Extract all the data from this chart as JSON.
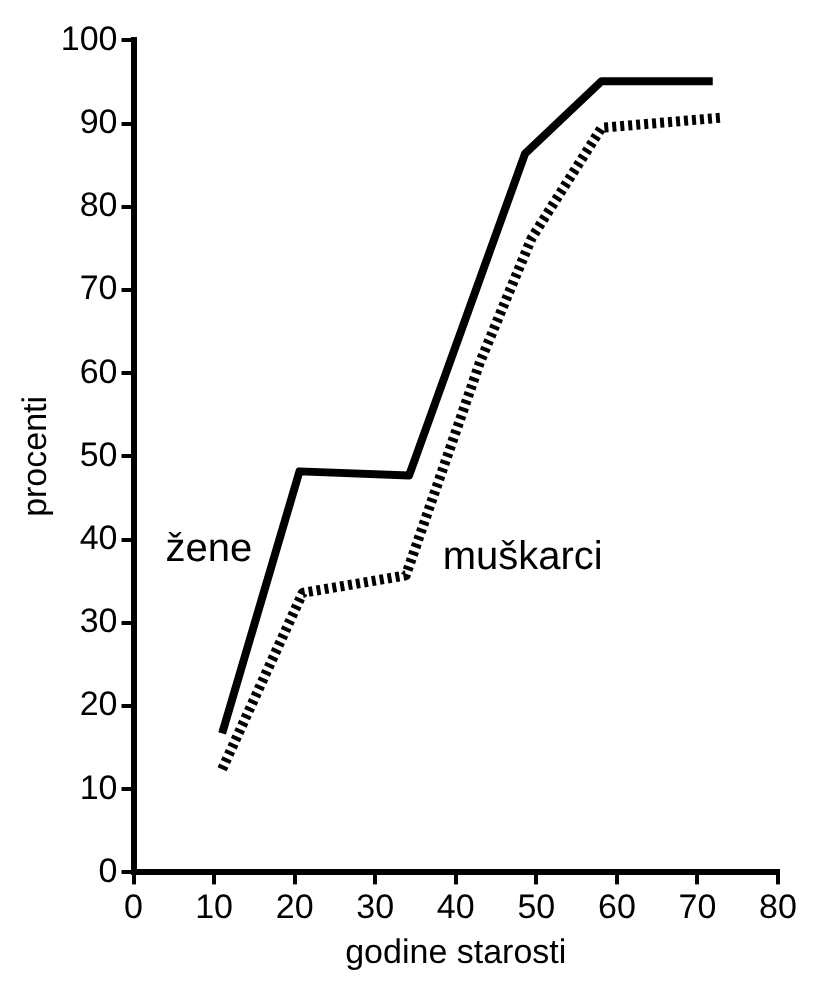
{
  "chart_data": {
    "type": "line",
    "xlabel": "godine starosti",
    "ylabel": "procenti",
    "xlim": [
      0,
      80
    ],
    "xticks": [
      0,
      10,
      20,
      30,
      40,
      50,
      60,
      70,
      80
    ],
    "ylim": [
      0,
      100
    ],
    "yticks": [
      0,
      10,
      20,
      30,
      40,
      50,
      60,
      70,
      80,
      90,
      100
    ],
    "grid": false,
    "legend": false,
    "marker": "none",
    "series": [
      {
        "name": "žene",
        "color": "#000000",
        "line_style": "solid",
        "x": [
          11,
          20.6,
          34.2,
          48.6,
          58.1,
          71.9
        ],
        "values": [
          16.7,
          48.2,
          47.7,
          86.4,
          95.1,
          95.1
        ]
      },
      {
        "name": "muškarci",
        "color": "#000000",
        "line_style": "dotted",
        "x": [
          11,
          21,
          33.8,
          43,
          49.4,
          58.1,
          72.8
        ],
        "values": [
          12.4,
          33.6,
          35.7,
          61.3,
          76.2,
          89.5,
          90.7
        ]
      }
    ]
  }
}
